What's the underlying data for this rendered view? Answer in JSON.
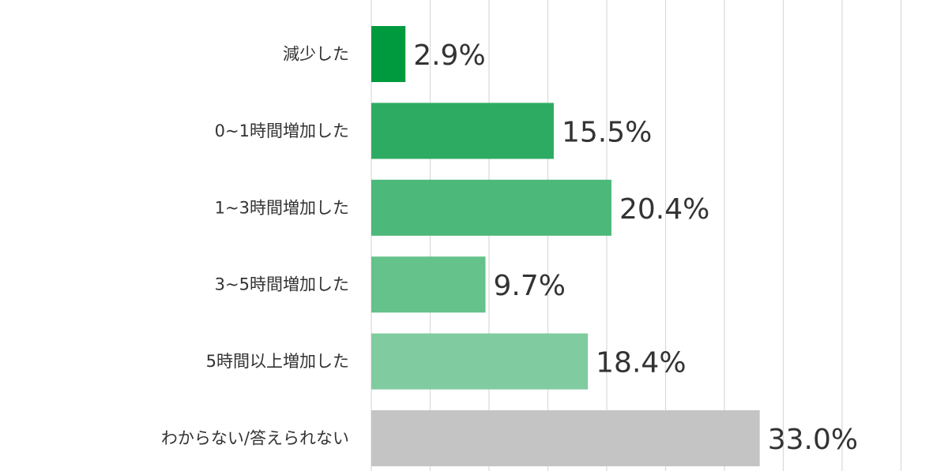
{
  "chart_data": {
    "type": "bar",
    "orientation": "horizontal",
    "categories": [
      "減少した",
      "0~1時間増加した",
      "1~3時間増加した",
      "3~5時間増加した",
      "5時間以上増加した",
      "わからない/答えられない"
    ],
    "values": [
      2.9,
      15.5,
      20.4,
      9.7,
      18.4,
      33.0
    ],
    "value_labels": [
      "2.9%",
      "15.5%",
      "20.4%",
      "9.7%",
      "18.4%",
      "33.0%"
    ],
    "colors": [
      "#009a3e",
      "#2eab63",
      "#4cb879",
      "#65c28b",
      "#80cb9f",
      "#c4c4c4"
    ],
    "title": "",
    "xlabel": "",
    "ylabel": "",
    "xlim": [
      0,
      50
    ],
    "grid_step": 5,
    "grid": true,
    "legend": "none"
  }
}
